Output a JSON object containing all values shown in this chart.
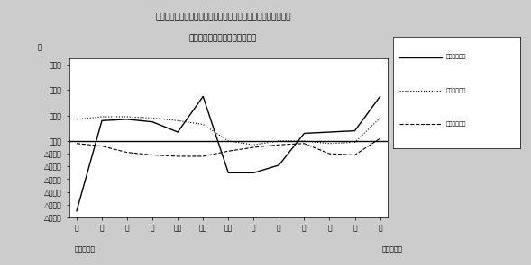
{
  "title_line1": "第４図　　賃金、労働時間、常用雇用指数対前年同月比の推移",
  "title_line2": "（規模５人以上　調査産業計）",
  "xlabel_left": "平成１８年",
  "xlabel_right": "平成１９年",
  "ylabel": "％",
  "ytick_vals": [
    6.0,
    4.0,
    2.0,
    0.0,
    -1.0,
    -2.0,
    -3.0,
    -4.0,
    -5.0,
    -6.0
  ],
  "ytick_labels": [
    "６．０",
    "４．０",
    "２．０",
    "０．０",
    "△１．０",
    "△２．０",
    "△３．０",
    "△４．０",
    "△５．０",
    "△６．０"
  ],
  "xtick_labels": [
    "６",
    "７",
    "８",
    "９",
    "１０",
    "１１",
    "１２",
    "１",
    "２",
    "３",
    "４",
    "５",
    "６"
  ],
  "legend": [
    "現金給与総額",
    "労働時間指数",
    "常用雇用指数"
  ],
  "series1_color": "#000000",
  "series1_values": [
    -5.5,
    1.6,
    1.7,
    1.5,
    0.7,
    3.5,
    -2.5,
    -2.5,
    -1.9,
    0.6,
    0.7,
    0.8,
    3.5
  ],
  "series2_color": "#000000",
  "series2_values": [
    1.7,
    1.9,
    1.9,
    1.8,
    1.6,
    1.3,
    0.0,
    -0.3,
    0.0,
    0.0,
    -0.2,
    -0.1,
    1.8
  ],
  "series3_color": "#000000",
  "series3_values": [
    -0.2,
    -0.4,
    -0.9,
    -1.1,
    -1.2,
    -1.2,
    -0.8,
    -0.5,
    -0.3,
    -0.2,
    -1.0,
    -1.1,
    0.2
  ],
  "background_color": "#ffffff",
  "fig_bg_color": "#cccccc"
}
